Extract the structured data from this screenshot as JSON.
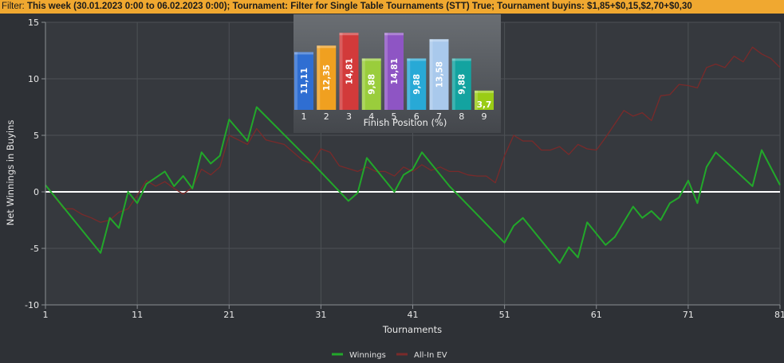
{
  "filter": {
    "label": "Filter:",
    "text": "This week (30.01.2023 0:00 to 06.02.2023 0:00); Tournament: Filter for Single Table Tournaments (STT) True; Tournament buyins: $1,85+$0,15,$2,70+$0,30"
  },
  "chart_data": [
    {
      "type": "line",
      "xlabel": "Tournaments",
      "ylabel": "Net Winnings in Buyins",
      "xlim": [
        1,
        81
      ],
      "ylim": [
        -10,
        15
      ],
      "xticks": [
        1,
        11,
        21,
        31,
        41,
        51,
        61,
        71,
        81
      ],
      "yticks": [
        15,
        10,
        5,
        0,
        -5,
        -10
      ],
      "grid": true,
      "legend_position": "bottom-center",
      "series": [
        {
          "name": "Winnings",
          "color": "#22a82a",
          "x": [
            1,
            7,
            8,
            9,
            10,
            11,
            12,
            14,
            15,
            16,
            17,
            18,
            19,
            20,
            21,
            23,
            24,
            30,
            34,
            35,
            36,
            39,
            40,
            41,
            42,
            45,
            51,
            52,
            53,
            57,
            58,
            59,
            60,
            62,
            63,
            65,
            66,
            67,
            68,
            69,
            70,
            71,
            72,
            73,
            74,
            78,
            79,
            81
          ],
          "y": [
            0.6,
            -5.4,
            -2.3,
            -3.2,
            0.0,
            -1.0,
            0.7,
            1.8,
            0.5,
            1.4,
            0.3,
            3.5,
            2.5,
            3.2,
            6.4,
            4.5,
            7.5,
            2.6,
            -0.8,
            -0.1,
            3.0,
            0.0,
            1.5,
            2.0,
            3.5,
            0.5,
            -4.5,
            -3.0,
            -2.3,
            -6.3,
            -4.9,
            -5.8,
            -2.7,
            -4.7,
            -4.0,
            -1.3,
            -2.3,
            -1.7,
            -2.5,
            -1.0,
            -0.5,
            1.0,
            -1.0,
            2.2,
            3.5,
            0.5,
            3.7,
            0.6
          ]
        },
        {
          "name": "All-In EV",
          "color": "#7a2a2a",
          "x": [
            1,
            3,
            4,
            5,
            6,
            7,
            8,
            9,
            10,
            11,
            12,
            13,
            14,
            15,
            16,
            17,
            18,
            19,
            20,
            21,
            22,
            23,
            24,
            25,
            27,
            29,
            30,
            31,
            32,
            33,
            35,
            36,
            37,
            38,
            39,
            40,
            41,
            42,
            43,
            44,
            45,
            46,
            47,
            48,
            49,
            50,
            51,
            52,
            53,
            54,
            55,
            56,
            57,
            58,
            59,
            60,
            61,
            62,
            63,
            64,
            65,
            66,
            67,
            68,
            69,
            70,
            71,
            72,
            73,
            74,
            75,
            76,
            77,
            78,
            79,
            80,
            81
          ],
          "y": [
            0.6,
            -1.5,
            -1.5,
            -2.0,
            -2.3,
            -2.7,
            -2.5,
            -1.8,
            -1.5,
            -0.3,
            1.0,
            0.5,
            0.9,
            0.3,
            -0.2,
            0.4,
            2.0,
            1.5,
            2.2,
            5.0,
            4.6,
            4.2,
            5.6,
            4.6,
            4.2,
            2.8,
            2.5,
            3.8,
            3.5,
            2.3,
            1.8,
            2.2,
            1.8,
            1.8,
            1.4,
            2.2,
            1.8,
            2.4,
            1.9,
            2.2,
            1.8,
            1.8,
            1.5,
            1.4,
            1.4,
            0.8,
            3.2,
            5.0,
            4.5,
            4.5,
            3.7,
            3.7,
            4.0,
            3.3,
            4.2,
            3.8,
            3.7,
            4.8,
            6.0,
            7.2,
            6.7,
            7.0,
            6.3,
            8.5,
            8.6,
            9.5,
            9.4,
            9.2,
            11.0,
            11.3,
            11.0,
            12.0,
            11.5,
            12.8,
            12.2,
            11.8,
            11.0
          ]
        }
      ],
      "reference_line": {
        "y": 0,
        "color": "#ffffff"
      }
    },
    {
      "type": "bar",
      "xlabel": "Finish Position (%)",
      "categories": [
        "1",
        "2",
        "3",
        "4",
        "5",
        "6",
        "7",
        "8",
        "9"
      ],
      "values": [
        11.11,
        12.35,
        14.81,
        9.88,
        14.81,
        9.88,
        13.58,
        9.88,
        3.7
      ],
      "value_labels": [
        "11,11",
        "12,35",
        "14,81",
        "9,88",
        "14,81",
        "9,88",
        "13,58",
        "9,88",
        "3,7"
      ],
      "colors": [
        "#2f6ed2",
        "#f0a020",
        "#d23a3a",
        "#9acd3c",
        "#8e55c4",
        "#28a9d6",
        "#a9c9ec",
        "#13a3a0",
        "#9acc16"
      ]
    }
  ]
}
